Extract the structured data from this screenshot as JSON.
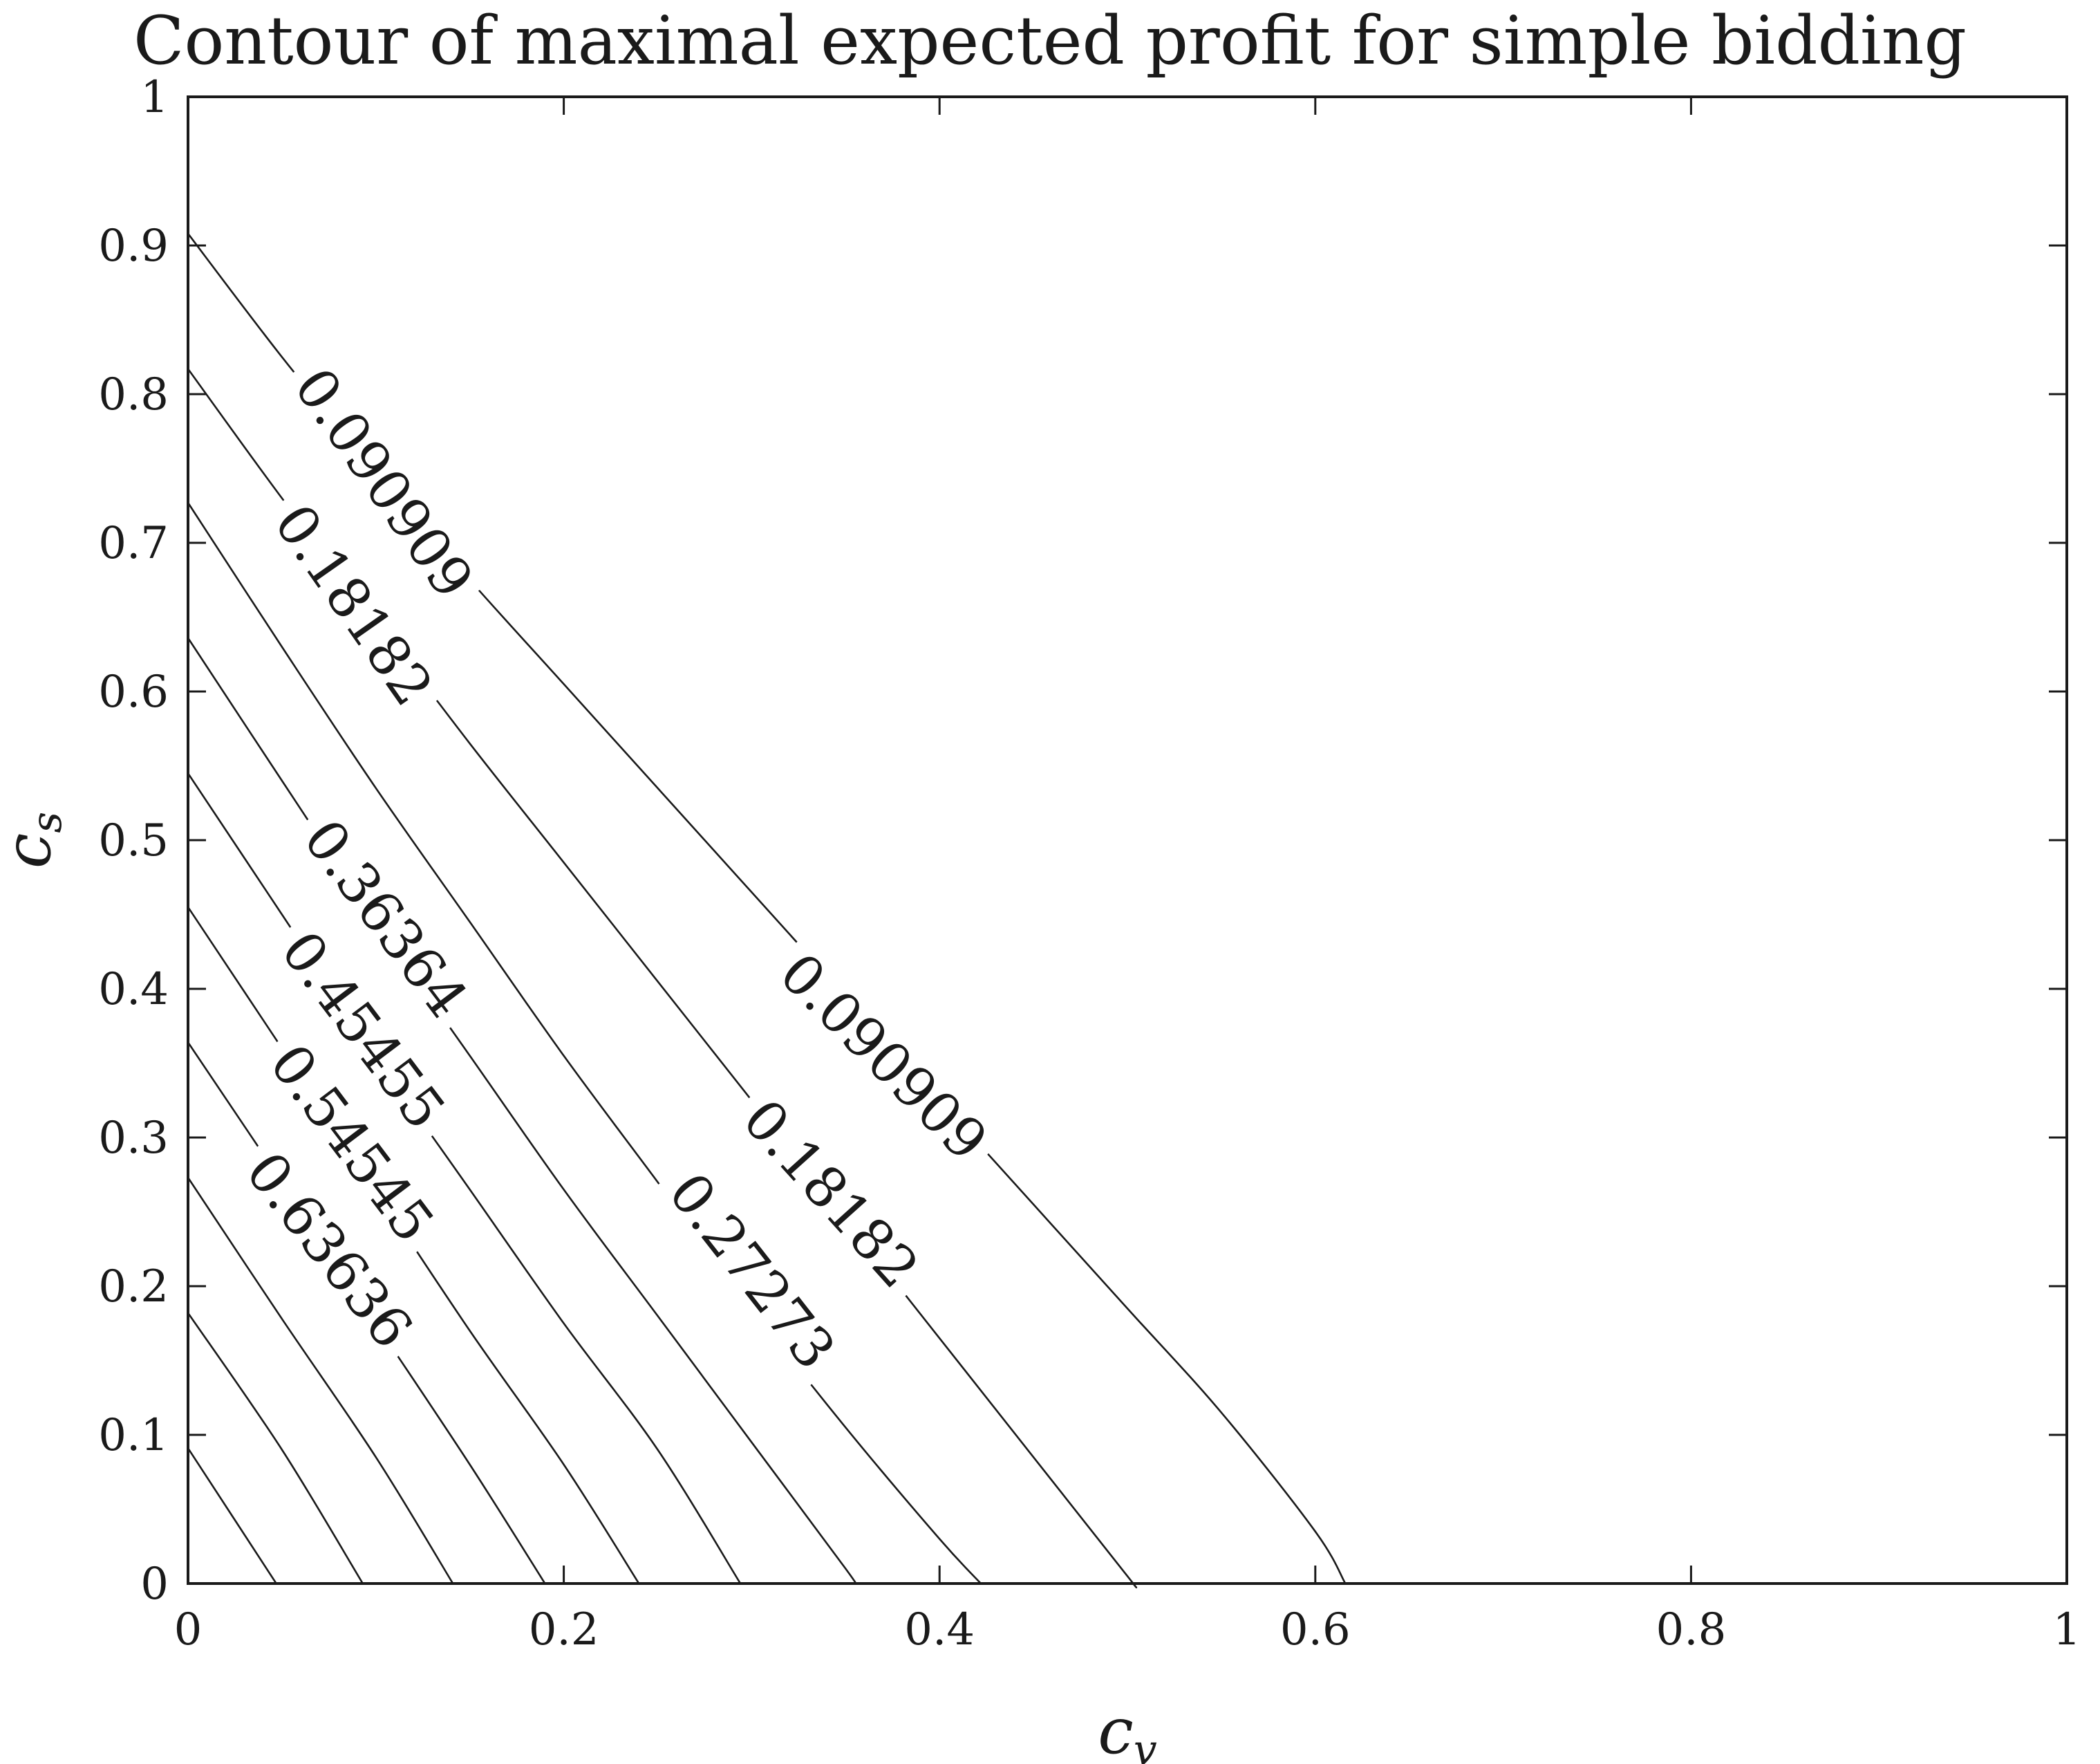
{
  "chart_data": {
    "type": "contour",
    "title": "Contour of maximal expected profit for simple bidding",
    "xlabel": {
      "base": "c",
      "sub": "v"
    },
    "ylabel": {
      "base": "c",
      "sub": "s"
    },
    "xlim": [
      0,
      1
    ],
    "ylim": [
      0,
      1
    ],
    "xticks": [
      "0",
      "0.2",
      "0.4",
      "0.6",
      "0.8",
      "1"
    ],
    "yticks": [
      "0",
      "0.1",
      "0.2",
      "0.3",
      "0.4",
      "0.5",
      "0.6",
      "0.7",
      "0.8",
      "0.9",
      "1"
    ],
    "grid": false,
    "series": [
      {
        "level": "0.090909",
        "points": [
          [
            0,
            0.908
          ],
          [
            0.05,
            0.825
          ],
          [
            0.1,
            0.748
          ],
          [
            0.15,
            0.675
          ],
          [
            0.2,
            0.605
          ],
          [
            0.25,
            0.535
          ],
          [
            0.3,
            0.465
          ],
          [
            0.35,
            0.395
          ],
          [
            0.4,
            0.325
          ],
          [
            0.45,
            0.255
          ],
          [
            0.5,
            0.185
          ],
          [
            0.55,
            0.115
          ],
          [
            0.6,
            0.035
          ],
          [
            0.616,
            0
          ]
        ]
      },
      {
        "level": "0.18182",
        "points": [
          [
            0,
            0.817
          ],
          [
            0.05,
            0.73
          ],
          [
            0.1,
            0.648
          ],
          [
            0.15,
            0.565
          ],
          [
            0.2,
            0.485
          ],
          [
            0.25,
            0.405
          ],
          [
            0.3,
            0.325
          ],
          [
            0.35,
            0.245
          ],
          [
            0.4,
            0.165
          ],
          [
            0.45,
            0.085
          ],
          [
            0.5,
            0.005
          ],
          [
            0.503,
            0
          ]
        ]
      },
      {
        "level": "0.27273",
        "points": [
          [
            0,
            0.727
          ],
          [
            0.05,
            0.63
          ],
          [
            0.1,
            0.535
          ],
          [
            0.15,
            0.445
          ],
          [
            0.2,
            0.355
          ],
          [
            0.25,
            0.27
          ],
          [
            0.3,
            0.185
          ],
          [
            0.35,
            0.105
          ],
          [
            0.4,
            0.03
          ],
          [
            0.422,
            0
          ]
        ]
      },
      {
        "level": "0.36364",
        "points": [
          [
            0,
            0.636
          ],
          [
            0.05,
            0.54
          ],
          [
            0.1,
            0.445
          ],
          [
            0.15,
            0.355
          ],
          [
            0.2,
            0.265
          ],
          [
            0.25,
            0.18
          ],
          [
            0.3,
            0.095
          ],
          [
            0.35,
            0.01
          ],
          [
            0.355,
            0
          ]
        ]
      },
      {
        "level": "0.45455",
        "points": [
          [
            0,
            0.545
          ],
          [
            0.05,
            0.45
          ],
          [
            0.1,
            0.355
          ],
          [
            0.15,
            0.265
          ],
          [
            0.2,
            0.175
          ],
          [
            0.25,
            0.09
          ],
          [
            0.294,
            0
          ]
        ]
      },
      {
        "level": "0.54545",
        "points": [
          [
            0,
            0.455
          ],
          [
            0.05,
            0.36
          ],
          [
            0.1,
            0.265
          ],
          [
            0.15,
            0.17
          ],
          [
            0.2,
            0.08
          ],
          [
            0.24,
            0
          ]
        ]
      },
      {
        "level": "0.63636",
        "points": [
          [
            0,
            0.364
          ],
          [
            0.05,
            0.27
          ],
          [
            0.1,
            0.175
          ],
          [
            0.15,
            0.08
          ],
          [
            0.19,
            0
          ]
        ]
      },
      {
        "level": "",
        "points": [
          [
            0,
            0.273
          ],
          [
            0.05,
            0.178
          ],
          [
            0.1,
            0.085
          ],
          [
            0.141,
            0
          ]
        ]
      },
      {
        "level": "",
        "points": [
          [
            0,
            0.182
          ],
          [
            0.05,
            0.09
          ],
          [
            0.093,
            0
          ]
        ]
      },
      {
        "level": "",
        "points": [
          [
            0,
            0.091
          ],
          [
            0.047,
            0
          ]
        ]
      }
    ],
    "contour_labels": [
      {
        "text": "0.090909",
        "x": 0.104,
        "y": 0.74,
        "angle": 55
      },
      {
        "text": "0.18182",
        "x": 0.088,
        "y": 0.658,
        "angle": 55
      },
      {
        "text": "0.36364",
        "x": 0.105,
        "y": 0.447,
        "angle": 53
      },
      {
        "text": "0.45455",
        "x": 0.093,
        "y": 0.372,
        "angle": 53
      },
      {
        "text": "0.54545",
        "x": 0.087,
        "y": 0.296,
        "angle": 53
      },
      {
        "text": "0.63636",
        "x": 0.075,
        "y": 0.224,
        "angle": 52
      },
      {
        "text": "0.090909",
        "x": 0.37,
        "y": 0.354,
        "angle": 45
      },
      {
        "text": "0.18182",
        "x": 0.342,
        "y": 0.262,
        "angle": 48
      },
      {
        "text": "0.27273",
        "x": 0.3,
        "y": 0.21,
        "angle": 52
      }
    ]
  }
}
